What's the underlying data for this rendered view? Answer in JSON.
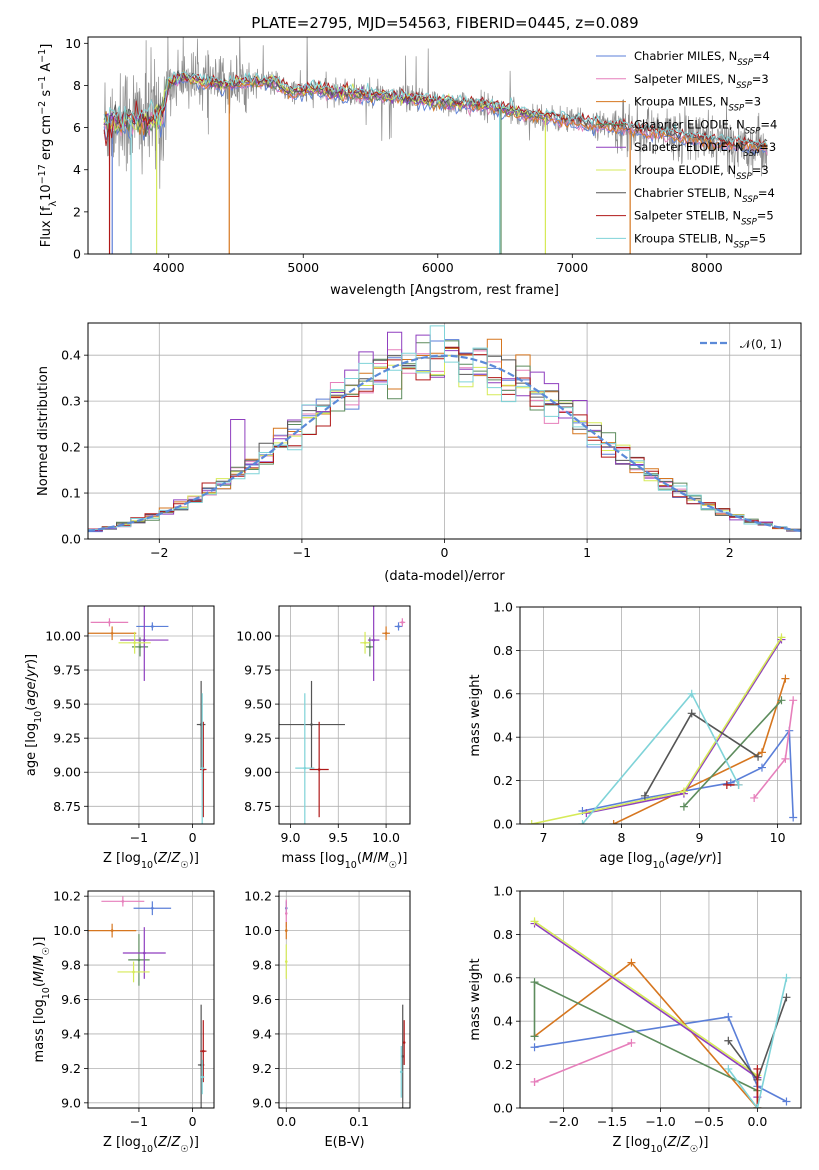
{
  "figure_title": "PLATE=2795, MJD=54563, FIBERID=0445, z=0.089",
  "colors": {
    "Chabrier MILES": "#5b7fd8",
    "Salpeter MILES": "#e67fbb",
    "Kroupa MILES": "#d6761f",
    "Chabrier ELODIE": "#5d8c5d",
    "Salpeter ELODIE": "#8f3fbf",
    "Kroupa ELODIE": "#d6ea58",
    "Chabrier STELIB": "#555555",
    "Salpeter STELIB": "#b01818",
    "Kroupa STELIB": "#7fd3d8",
    "normal": "#5b8ad8",
    "data": "#8c8c8c"
  },
  "chart_data": [
    {
      "id": "spectrum",
      "type": "line",
      "title": "PLATE=2795, MJD=54563, FIBERID=0445, z=0.089",
      "xlabel": "wavelength [Angstrom, rest frame]",
      "ylabel": "Flux [f_λ 10^-17 erg cm^-2 s^-1 A^-1]",
      "xlim": [
        3400,
        8700
      ],
      "ylim": [
        0,
        10.3
      ],
      "xticks": [
        4000,
        5000,
        6000,
        7000,
        8000
      ],
      "yticks": [
        0,
        2,
        4,
        6,
        8,
        10
      ],
      "grid": false,
      "legend_position": "top-right",
      "legend": [
        {
          "name": "Chabrier MILES",
          "nssp": "4"
        },
        {
          "name": "Salpeter MILES",
          "nssp": "3"
        },
        {
          "name": "Kroupa MILES",
          "nssp": "3"
        },
        {
          "name": "Chabrier ELODIE",
          "nssp": "4"
        },
        {
          "name": "Salpeter ELODIE",
          "nssp": "3"
        },
        {
          "name": "Kroupa ELODIE",
          "nssp": "3"
        },
        {
          "name": "Chabrier STELIB",
          "nssp": "4"
        },
        {
          "name": "Salpeter STELIB",
          "nssp": "5"
        },
        {
          "name": "Kroupa STELIB",
          "nssp": "5"
        }
      ],
      "continuum": [
        [
          3500,
          6.1
        ],
        [
          3650,
          6.4
        ],
        [
          3800,
          6.3
        ],
        [
          3950,
          6.6
        ],
        [
          4000,
          8.0
        ],
        [
          4100,
          8.4
        ],
        [
          4250,
          8.2
        ],
        [
          4400,
          8.0
        ],
        [
          4600,
          8.2
        ],
        [
          4800,
          8.1
        ],
        [
          4900,
          7.7
        ],
        [
          5100,
          7.8
        ],
        [
          5300,
          7.6
        ],
        [
          5600,
          7.5
        ],
        [
          6000,
          7.2
        ],
        [
          6300,
          7.1
        ],
        [
          6600,
          6.7
        ],
        [
          7000,
          6.3
        ],
        [
          7400,
          6.0
        ],
        [
          7800,
          5.6
        ],
        [
          8200,
          5.2
        ],
        [
          8450,
          5.1
        ]
      ]
    },
    {
      "id": "residuals",
      "type": "histogram",
      "xlabel": "(data-model)/error",
      "ylabel": "Normed distribution",
      "xlim": [
        -2.5,
        2.5
      ],
      "ylim": [
        0,
        0.47
      ],
      "xticks": [
        -2,
        -1,
        0,
        1,
        2
      ],
      "yticks": [
        0.0,
        0.1,
        0.2,
        0.3,
        0.4
      ],
      "grid": true,
      "legend_position": "top-right",
      "legend_label": "𝒩(0, 1)",
      "bin_width": 0.1
    },
    {
      "id": "age_vs_Z",
      "type": "errorbar",
      "xlabel": "Z [log10(Z/Z☉)]",
      "ylabel": "age  [log10(age/yr)]",
      "xlim": [
        -1.95,
        0.4
      ],
      "ylim": [
        8.62,
        10.22
      ],
      "xticks": [
        -1,
        0
      ],
      "yticks": [
        8.75,
        9.0,
        9.25,
        9.5,
        9.75,
        10.0
      ],
      "grid": true,
      "points": [
        {
          "model": "Chabrier MILES",
          "x": -0.75,
          "y": 10.07,
          "xerr": 0.3,
          "yerr": 0.03
        },
        {
          "model": "Salpeter MILES",
          "x": -1.55,
          "y": 10.1,
          "xerr": 0.35,
          "yerr": 0.03
        },
        {
          "model": "Kroupa MILES",
          "x": -1.5,
          "y": 10.02,
          "xerr": 0.45,
          "yerr": 0.05
        },
        {
          "model": "Chabrier ELODIE",
          "x": -0.98,
          "y": 9.92,
          "xerr": 0.15,
          "yerr": 0.07
        },
        {
          "model": "Salpeter ELODIE",
          "x": -0.9,
          "y": 9.97,
          "xerr": 0.45,
          "yerr": 0.3
        },
        {
          "model": "Kroupa ELODIE",
          "x": -1.08,
          "y": 9.95,
          "xerr": 0.3,
          "yerr": 0.08
        },
        {
          "model": "Chabrier STELIB",
          "x": 0.16,
          "y": 9.35,
          "xerr": 0.08,
          "yerr": 0.32
        },
        {
          "model": "Salpeter STELIB",
          "x": 0.2,
          "y": 9.02,
          "xerr": 0.06,
          "yerr": 0.35
        },
        {
          "model": "Kroupa STELIB",
          "x": 0.18,
          "y": 9.03,
          "xerr": 0.04,
          "yerr": 0.55
        }
      ]
    },
    {
      "id": "age_vs_mass",
      "type": "errorbar",
      "xlabel": "mass [log10(M/M☉)]",
      "ylabel": "",
      "xlim": [
        8.88,
        10.25
      ],
      "ylim": [
        8.62,
        10.22
      ],
      "xticks": [
        9.0,
        9.5,
        10.0
      ],
      "yticks": [
        8.75,
        9.0,
        9.25,
        9.5,
        9.75,
        10.0
      ],
      "grid": true,
      "points": [
        {
          "model": "Chabrier MILES",
          "x": 10.13,
          "y": 10.07,
          "xerr": 0.04,
          "yerr": 0.03
        },
        {
          "model": "Salpeter MILES",
          "x": 10.17,
          "y": 10.1,
          "xerr": 0.03,
          "yerr": 0.03
        },
        {
          "model": "Kroupa MILES",
          "x": 10.0,
          "y": 10.02,
          "xerr": 0.04,
          "yerr": 0.05
        },
        {
          "model": "Chabrier ELODIE",
          "x": 9.83,
          "y": 9.92,
          "xerr": 0.04,
          "yerr": 0.07
        },
        {
          "model": "Salpeter ELODIE",
          "x": 9.87,
          "y": 9.97,
          "xerr": 0.06,
          "yerr": 0.3
        },
        {
          "model": "Kroupa ELODIE",
          "x": 9.78,
          "y": 9.95,
          "xerr": 0.05,
          "yerr": 0.08
        },
        {
          "model": "Chabrier STELIB",
          "x": 9.22,
          "y": 9.35,
          "xerr": 0.35,
          "yerr": 0.32
        },
        {
          "model": "Salpeter STELIB",
          "x": 9.3,
          "y": 9.02,
          "xerr": 0.1,
          "yerr": 0.35
        },
        {
          "model": "Kroupa STELIB",
          "x": 9.15,
          "y": 9.03,
          "xerr": 0.1,
          "yerr": 0.55
        }
      ]
    },
    {
      "id": "weight_vs_age",
      "type": "line",
      "xlabel": "age  [log10(age/yr)]",
      "ylabel": "mass weight",
      "xlim": [
        6.7,
        10.3
      ],
      "ylim": [
        0.0,
        1.0
      ],
      "xticks": [
        7,
        8,
        9,
        10
      ],
      "yticks": [
        0.0,
        0.2,
        0.4,
        0.6,
        0.8,
        1.0
      ],
      "grid": true,
      "series": [
        {
          "model": "Chabrier MILES",
          "x": [
            7.5,
            8.3,
            9.4,
            9.8,
            10.15,
            10.2
          ],
          "y": [
            0.06,
            0.12,
            0.19,
            0.26,
            0.43,
            0.03
          ]
        },
        {
          "model": "Salpeter MILES",
          "x": [
            9.7,
            10.1,
            10.2
          ],
          "y": [
            0.12,
            0.3,
            0.57
          ]
        },
        {
          "model": "Kroupa MILES",
          "x": [
            7.9,
            9.8,
            10.1
          ],
          "y": [
            0.0,
            0.33,
            0.67
          ]
        },
        {
          "model": "Chabrier ELODIE",
          "x": [
            8.8,
            10.05
          ],
          "y": [
            0.08,
            0.57
          ]
        },
        {
          "model": "Salpeter ELODIE",
          "x": [
            7.55,
            8.8,
            10.05
          ],
          "y": [
            0.05,
            0.14,
            0.85
          ]
        },
        {
          "model": "Kroupa ELODIE",
          "x": [
            6.85,
            8.8,
            10.05
          ],
          "y": [
            0.0,
            0.15,
            0.86
          ]
        },
        {
          "model": "Chabrier STELIB",
          "x": [
            8.3,
            8.9,
            9.75
          ],
          "y": [
            0.13,
            0.51,
            0.31
          ]
        },
        {
          "model": "Salpeter STELIB",
          "x": [
            9.35,
            9.5
          ],
          "y": [
            0.18,
            0.18
          ]
        },
        {
          "model": "Kroupa STELIB",
          "x": [
            7.5,
            8.9,
            9.5
          ],
          "y": [
            0.0,
            0.6,
            0.18
          ]
        }
      ]
    },
    {
      "id": "mass_vs_Z",
      "type": "errorbar",
      "xlabel": "Z [log10(Z/Z☉)]",
      "ylabel": "mass [log10(M/M☉)]",
      "xlim": [
        -1.95,
        0.4
      ],
      "ylim": [
        8.97,
        10.23
      ],
      "xticks": [
        -1,
        0
      ],
      "yticks": [
        9.0,
        9.2,
        9.4,
        9.6,
        9.8,
        10.0,
        10.2
      ],
      "grid": true,
      "points": [
        {
          "model": "Chabrier MILES",
          "x": -0.75,
          "y": 10.13,
          "xerr": 0.35,
          "yerr": 0.04
        },
        {
          "model": "Salpeter MILES",
          "x": -1.3,
          "y": 10.17,
          "xerr": 0.4,
          "yerr": 0.03
        },
        {
          "model": "Kroupa MILES",
          "x": -1.5,
          "y": 10.0,
          "xerr": 0.45,
          "yerr": 0.04
        },
        {
          "model": "Chabrier ELODIE",
          "x": -1.0,
          "y": 9.83,
          "xerr": 0.2,
          "yerr": 0.15
        },
        {
          "model": "Salpeter ELODIE",
          "x": -0.9,
          "y": 9.87,
          "xerr": 0.4,
          "yerr": 0.15
        },
        {
          "model": "Kroupa ELODIE",
          "x": -1.1,
          "y": 9.76,
          "xerr": 0.3,
          "yerr": 0.06
        },
        {
          "model": "Chabrier STELIB",
          "x": 0.16,
          "y": 9.22,
          "xerr": 0.06,
          "yerr": 0.35
        },
        {
          "model": "Salpeter STELIB",
          "x": 0.2,
          "y": 9.3,
          "xerr": 0.06,
          "yerr": 0.18
        },
        {
          "model": "Kroupa STELIB",
          "x": 0.18,
          "y": 9.15,
          "xerr": 0.04,
          "yerr": 0.1
        }
      ]
    },
    {
      "id": "mass_vs_EBV",
      "type": "errorbar",
      "xlabel": "E(B-V)",
      "ylabel": "",
      "xlim": [
        -0.01,
        0.17
      ],
      "ylim": [
        8.97,
        10.23
      ],
      "xticks": [
        0.0,
        0.1
      ],
      "yticks": [
        9.0,
        9.2,
        9.4,
        9.6,
        9.8,
        10.0,
        10.2
      ],
      "grid": true,
      "points": [
        {
          "model": "Chabrier MILES",
          "x": 0.0,
          "y": 10.13,
          "xerr": 0.0,
          "yerr": 0.04
        },
        {
          "model": "Salpeter MILES",
          "x": 0.0,
          "y": 10.1,
          "xerr": 0.0,
          "yerr": 0.08
        },
        {
          "model": "Kroupa MILES",
          "x": 0.0,
          "y": 10.0,
          "xerr": 0.0,
          "yerr": 0.05
        },
        {
          "model": "Kroupa ELODIE",
          "x": 0.0,
          "y": 9.82,
          "xerr": 0.0,
          "yerr": 0.1
        },
        {
          "model": "Chabrier STELIB",
          "x": 0.16,
          "y": 9.27,
          "xerr": 0.0,
          "yerr": 0.3
        },
        {
          "model": "Salpeter STELIB",
          "x": 0.162,
          "y": 9.35,
          "xerr": 0.0,
          "yerr": 0.13
        },
        {
          "model": "Kroupa STELIB",
          "x": 0.158,
          "y": 9.18,
          "xerr": 0.0,
          "yerr": 0.15
        }
      ]
    },
    {
      "id": "weight_vs_Z",
      "type": "line",
      "xlabel": "Z [log10(Z/Z☉)]",
      "ylabel": "mass weight",
      "xlim": [
        -2.45,
        0.45
      ],
      "ylim": [
        0.0,
        1.0
      ],
      "xticks": [
        -2.0,
        -1.5,
        -1.0,
        -0.5,
        0.0
      ],
      "yticks": [
        0.0,
        0.2,
        0.4,
        0.6,
        0.8,
        1.0
      ],
      "grid": true,
      "series": [
        {
          "model": "Chabrier MILES",
          "x": [
            -2.3,
            -0.3,
            0.0,
            0.3
          ],
          "y": [
            0.28,
            0.42,
            0.1,
            0.03
          ]
        },
        {
          "model": "Salpeter MILES",
          "x": [
            -2.3,
            -2.3,
            -1.3
          ],
          "y": [
            0.12,
            0.12,
            0.3
          ]
        },
        {
          "model": "Kroupa MILES",
          "x": [
            -2.3,
            -1.3,
            0.0
          ],
          "y": [
            0.33,
            0.67,
            0.0
          ]
        },
        {
          "model": "Chabrier ELODIE",
          "x": [
            -2.3,
            -2.3,
            0.0
          ],
          "y": [
            0.33,
            0.58,
            0.08
          ]
        },
        {
          "model": "Salpeter ELODIE",
          "x": [
            -2.3,
            0.0,
            0.0
          ],
          "y": [
            0.85,
            0.14,
            0.05
          ]
        },
        {
          "model": "Kroupa ELODIE",
          "x": [
            -2.3,
            0.0,
            0.0
          ],
          "y": [
            0.86,
            0.15,
            0.0
          ]
        },
        {
          "model": "Chabrier STELIB",
          "x": [
            -0.3,
            0.0,
            0.3
          ],
          "y": [
            0.31,
            0.13,
            0.51
          ]
        },
        {
          "model": "Salpeter STELIB",
          "x": [
            0.0,
            0.0
          ],
          "y": [
            0.18,
            0.0
          ]
        },
        {
          "model": "Kroupa STELIB",
          "x": [
            -0.3,
            0.0,
            0.3
          ],
          "y": [
            0.18,
            0.0,
            0.6
          ]
        }
      ]
    }
  ],
  "labels": {
    "ax1_xlabel": "wavelength [Angstrom, rest frame]",
    "ax2_xlabel": "(data-model)/error",
    "ax2_ylabel": "Normed distribution",
    "ax5_ylabel": "mass weight",
    "ax5_xlabel": "age  [log10(age/yr)]",
    "ax8_ylabel": "mass weight",
    "ax7_xlabel": "E(B-V)"
  }
}
